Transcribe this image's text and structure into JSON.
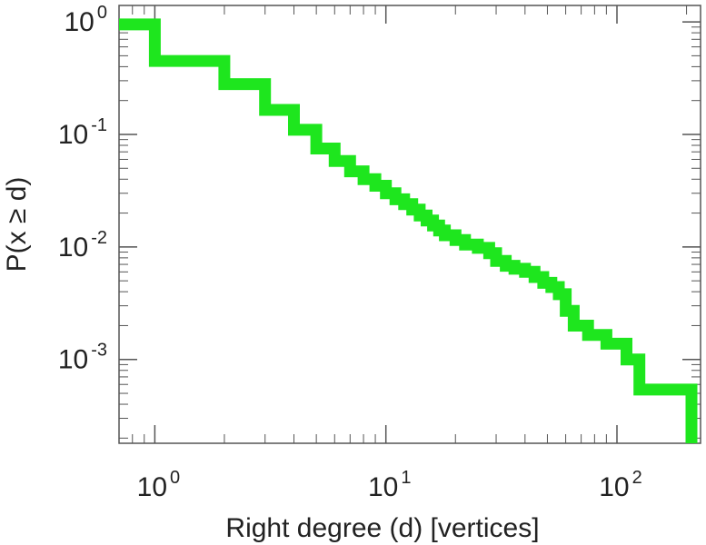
{
  "chart_data": {
    "type": "line",
    "step": true,
    "title": "",
    "xlabel": "Right degree (d) [vertices]",
    "ylabel": "P(x ≥ d)",
    "xscale": "log",
    "yscale": "log",
    "xlim": [
      0.7,
      230
    ],
    "ylim": [
      0.00018,
      1.4
    ],
    "grid": false,
    "legend": "none",
    "color": "#1ee61e",
    "x_ticks": [
      {
        "base": "10",
        "exp": "0",
        "value": 1
      },
      {
        "base": "10",
        "exp": "1",
        "value": 10
      },
      {
        "base": "10",
        "exp": "2",
        "value": 100
      }
    ],
    "y_ticks": [
      {
        "base": "10",
        "exp": "0",
        "value": 1
      },
      {
        "base": "10",
        "exp": "-1",
        "value": 0.1
      },
      {
        "base": "10",
        "exp": "-2",
        "value": 0.01
      },
      {
        "base": "10",
        "exp": "-3",
        "value": 0.001
      }
    ],
    "series": [
      {
        "x": [
          0.7,
          1,
          2,
          3,
          4,
          5,
          6,
          7,
          8,
          9,
          10,
          11,
          12,
          13,
          14,
          15,
          16,
          17,
          18,
          20,
          22,
          25,
          28,
          30,
          33,
          36,
          40,
          44,
          48,
          52,
          56,
          60,
          65,
          75,
          90,
          110,
          125,
          190,
          210
        ],
        "y": [
          0.95,
          0.45,
          0.28,
          0.165,
          0.11,
          0.075,
          0.058,
          0.047,
          0.04,
          0.035,
          0.03,
          0.0265,
          0.024,
          0.0215,
          0.019,
          0.0172,
          0.0155,
          0.014,
          0.0127,
          0.0115,
          0.0105,
          0.0098,
          0.0088,
          0.0075,
          0.0068,
          0.0064,
          0.006,
          0.0054,
          0.0048,
          0.0044,
          0.0038,
          0.0027,
          0.002,
          0.00165,
          0.00138,
          0.001,
          0.00054,
          0.00054,
          0.00026
        ]
      }
    ]
  }
}
